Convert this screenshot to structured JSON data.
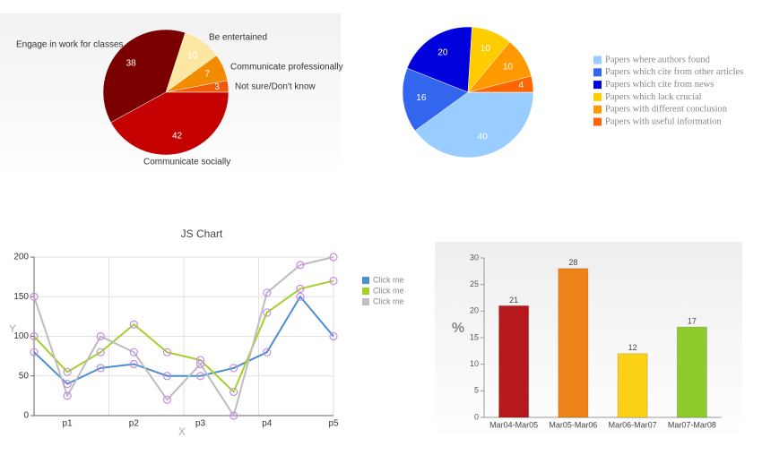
{
  "chart_data": [
    {
      "type": "pie",
      "categories": [
        "Be entertained",
        "Communicate professionally",
        "Not sure/Don't know",
        "Communicate socially",
        "Engage in work for classes"
      ],
      "values": [
        10,
        7,
        3,
        42,
        38
      ],
      "colors": [
        "#fbe7a1",
        "#f28b00",
        "#f05b0a",
        "#c40000",
        "#7a0000"
      ]
    },
    {
      "type": "pie",
      "categories": [
        "Papers where authors found",
        "Papers which cite from other articles",
        "Papers which cite from news",
        "Papers which lack crucial",
        "Papers with different conclusion",
        "Papers with useful information"
      ],
      "values": [
        40,
        16,
        20,
        10,
        10,
        4
      ],
      "colors": [
        "#99ccff",
        "#3366ee",
        "#0000dd",
        "#ffcc00",
        "#ff9900",
        "#ff6600"
      ],
      "legend": "right"
    },
    {
      "type": "line",
      "title": "JS Chart",
      "x_label": "X",
      "y_label": "Y",
      "categories": [
        null,
        "p1",
        null,
        "p2",
        null,
        "p3",
        null,
        "p4",
        null,
        "p5"
      ],
      "series": [
        {
          "name": "Click me",
          "color": "#4a8fd0",
          "values": [
            80,
            40,
            60,
            65,
            50,
            50,
            60,
            80,
            150,
            100
          ]
        },
        {
          "name": "Click me",
          "color": "#a3d12a",
          "values": [
            100,
            55,
            80,
            115,
            80,
            70,
            30,
            130,
            160,
            170
          ]
        },
        {
          "name": "Click me",
          "color": "#bdbdbd",
          "values": [
            150,
            25,
            100,
            80,
            20,
            65,
            0,
            155,
            190,
            200
          ]
        }
      ],
      "marker_color": "#c58be8",
      "ylim": [
        0,
        200
      ],
      "yticks": [
        0,
        50,
        100,
        150,
        200
      ],
      "grid": true,
      "legend": "right"
    },
    {
      "type": "bar",
      "y_label": "%",
      "categories": [
        "Mar04-Mar05",
        "Mar05-Mar06",
        "Mar06-Mar07",
        "Mar07-Mar08"
      ],
      "values": [
        21,
        28,
        12,
        17
      ],
      "colors": [
        "#b5191d",
        "#ee8419",
        "#fdd116",
        "#8ecb2d"
      ],
      "ylim": [
        0,
        30
      ],
      "yticks": [
        0,
        5,
        10,
        15,
        20,
        25,
        30
      ]
    }
  ]
}
